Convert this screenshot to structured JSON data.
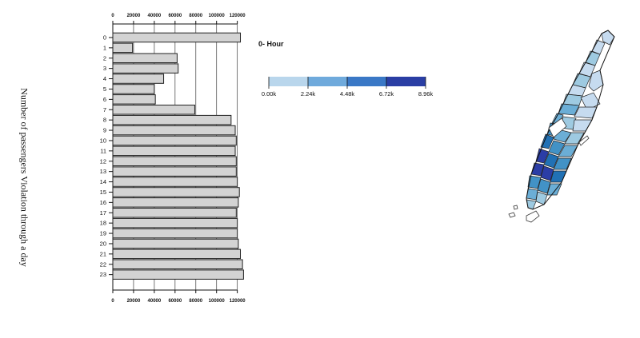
{
  "chart_data": {
    "type": "bar",
    "orientation": "horizontal",
    "ylabel": "Number of passengers Violation through a day",
    "categories": [
      "0",
      "1",
      "2",
      "3",
      "4",
      "5",
      "6",
      "7",
      "8",
      "9",
      "10",
      "11",
      "12",
      "13",
      "14",
      "15",
      "16",
      "17",
      "18",
      "19",
      "20",
      "21",
      "22",
      "23"
    ],
    "values": [
      123000,
      19000,
      62000,
      63000,
      49000,
      40000,
      41000,
      79000,
      114000,
      118000,
      119000,
      118000,
      119000,
      119000,
      120000,
      122000,
      121000,
      119000,
      120000,
      120000,
      121000,
      123000,
      125000,
      126000
    ],
    "xlim": [
      0,
      128000
    ],
    "xticks": [
      0,
      20000,
      40000,
      60000,
      80000,
      100000,
      120000
    ],
    "xtick_labels": [
      "0",
      "20000",
      "40000",
      "60000",
      "80000",
      "100000",
      "120000"
    ],
    "grid": "vertical",
    "bar_color": "#d3d3d3",
    "bar_stroke": "#222222"
  },
  "hour_label": "0- Hour",
  "legend": {
    "colors": [
      "#b9d6ec",
      "#6faadc",
      "#3a78c6",
      "#2a3ea4"
    ],
    "tick_labels": [
      "0.00k",
      "2.24k",
      "4.48k",
      "6.72k",
      "8.96k"
    ]
  },
  "map": {
    "region": "Manhattan",
    "fill_colors": [
      "#c6dbef",
      "#9ecae1",
      "#6baed6",
      "#4292c6",
      "#2171b5",
      "#2b3da6"
    ]
  }
}
